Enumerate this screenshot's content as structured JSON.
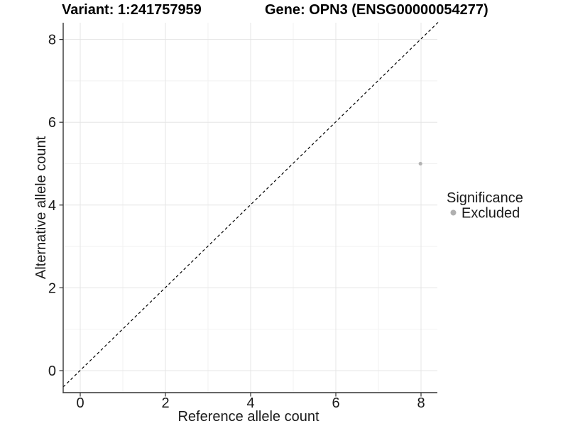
{
  "chart_data": {
    "type": "scatter",
    "title_left": "Variant: 1:241757959",
    "title_right": "Gene: OPN3 (ENSG00000054277)",
    "xlabel": "Reference allele count",
    "ylabel": "Alternative allele count",
    "xlim": [
      -0.4,
      8.45
    ],
    "ylim": [
      -0.55,
      8.4
    ],
    "x_ticks": [
      "0",
      "2",
      "4",
      "6",
      "8"
    ],
    "y_ticks": [
      "0",
      "2",
      "4",
      "6",
      "8"
    ],
    "x_tick_values": [
      0,
      2,
      4,
      6,
      8
    ],
    "y_tick_values": [
      0,
      2,
      4,
      6,
      8
    ],
    "minor_grid_values": [
      1,
      3,
      5,
      7
    ],
    "grid": true,
    "identity_line": {
      "equation": "y = x",
      "style": "dashed",
      "color": "#000000"
    },
    "points": [
      {
        "x": 8,
        "y": 5,
        "series": "Excluded",
        "color": "#b3b3b3"
      }
    ],
    "legend": {
      "position": "right",
      "title": "Significance",
      "items": [
        {
          "label": "Excluded",
          "color": "#b0b0b0",
          "marker": "circle"
        }
      ]
    },
    "colors": {
      "background": "#ffffff",
      "axis_line": "#333333",
      "tick_mark": "#333333",
      "grid_major": "#e5e5e5",
      "grid_minor": "#f2f2f2",
      "point_excluded": "#b3b3b3",
      "identity_line": "#000000",
      "text": "#1a1a1a",
      "title_text": "#000000"
    }
  }
}
